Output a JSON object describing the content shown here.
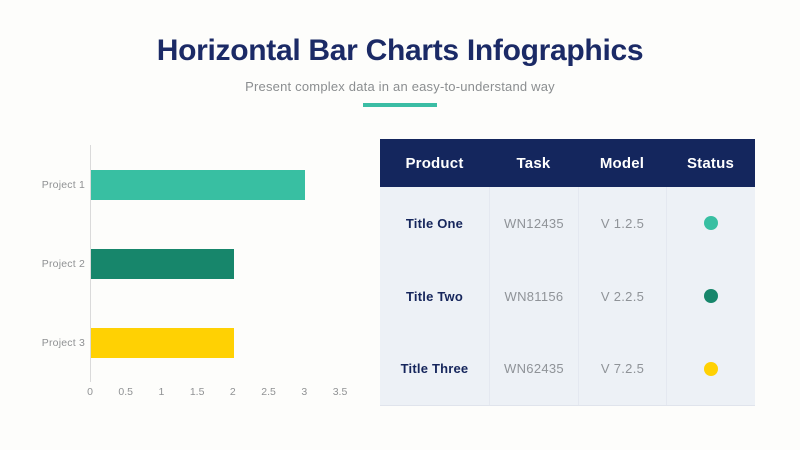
{
  "header": {
    "title": "Horizontal Bar Charts Infographics",
    "subtitle": "Present complex data in an easy-to-understand way",
    "title_color": "#1b2a66",
    "accent_color": "#3bbda4"
  },
  "chart_data": {
    "type": "bar",
    "orientation": "horizontal",
    "title": "",
    "xlabel": "",
    "ylabel": "",
    "categories": [
      "Project 1",
      "Project 2",
      "Project 3"
    ],
    "values": [
      3,
      2,
      2
    ],
    "bar_colors": [
      "#38bfa2",
      "#17866b",
      "#ffd103"
    ],
    "xlim": [
      0,
      3.5
    ],
    "xtick_labels": [
      "0",
      "0.5",
      "1",
      "1.5",
      "2",
      "2.5",
      "3",
      "3.5"
    ],
    "grid": false,
    "legend": false
  },
  "table": {
    "header_bg": "#14265d",
    "body_bg": "#edf1f6",
    "columns": [
      "Product",
      "Task",
      "Model",
      "Status"
    ],
    "rows": [
      {
        "product": "Title One",
        "task": "WN12435",
        "model": "V 1.2.5",
        "status_color": "#38bfa2"
      },
      {
        "product": "Title Two",
        "task": "WN81156",
        "model": "V 2.2.5",
        "status_color": "#17866b"
      },
      {
        "product": "Title Three",
        "task": "WN62435",
        "model": "V 7.2.5",
        "status_color": "#ffd103"
      }
    ]
  }
}
